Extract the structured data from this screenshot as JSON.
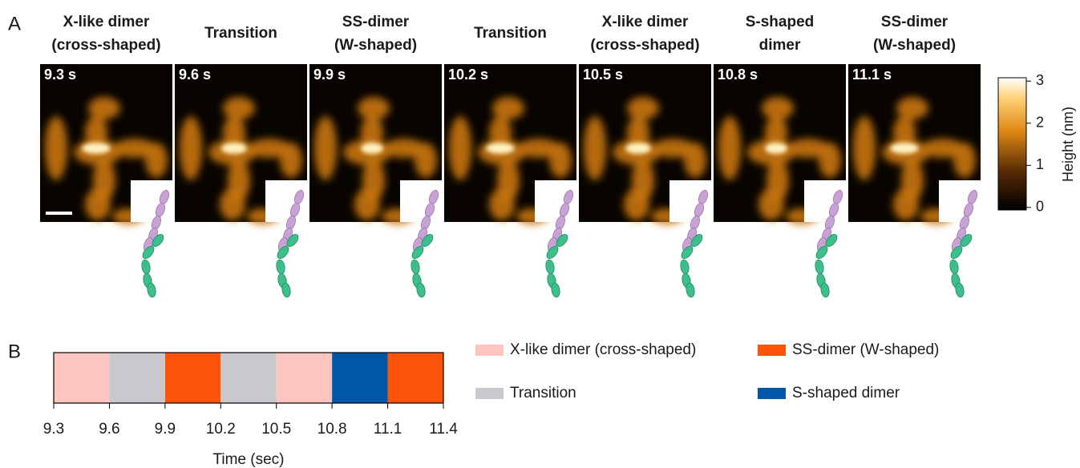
{
  "panel_a": {
    "label": "A",
    "frames": [
      {
        "title": [
          "X-like dimer",
          "(cross-shaped)"
        ],
        "time": "9.3 s"
      },
      {
        "title": [
          "Transition"
        ],
        "time": "9.6 s"
      },
      {
        "title": [
          "SS-dimer",
          "(W-shaped)"
        ],
        "time": "9.9 s"
      },
      {
        "title": [
          "Transition"
        ],
        "time": "10.2 s"
      },
      {
        "title": [
          "X-like dimer",
          "(cross-shaped)"
        ],
        "time": "10.5 s"
      },
      {
        "title": [
          "S-shaped",
          "dimer"
        ],
        "time": "10.8 s"
      },
      {
        "title": [
          "SS-dimer",
          "(W-shaped)"
        ],
        "time": "11.1 s"
      }
    ],
    "colorbar": {
      "label": "Height (nm)",
      "ylim": [
        -0.06,
        3.08
      ],
      "yticks": [
        0,
        1,
        2,
        3
      ]
    }
  },
  "chart_data": {
    "type": "timeline",
    "panel_label": "B",
    "xlabel": "Time (sec)",
    "xlim": [
      9.3,
      11.4
    ],
    "xticks": [
      9.3,
      9.6,
      9.9,
      10.2,
      10.5,
      10.8,
      11.1,
      11.4
    ],
    "series": [
      {
        "name": "X-like dimer (cross-shaped)",
        "color": "#fcc5c0",
        "intervals": [
          [
            9.3,
            9.6
          ],
          [
            10.5,
            10.8
          ]
        ]
      },
      {
        "name": "SS-dimer (W-shaped)",
        "color": "#fd5309",
        "intervals": [
          [
            9.9,
            10.2
          ],
          [
            11.1,
            11.4
          ]
        ]
      },
      {
        "name": "Transition",
        "color": "#c8c8cd",
        "intervals": [
          [
            9.6,
            9.9
          ],
          [
            10.2,
            10.5
          ]
        ]
      },
      {
        "name": "S-shaped dimer",
        "color": "#0057a8",
        "intervals": [
          [
            10.8,
            11.1
          ]
        ]
      }
    ]
  }
}
